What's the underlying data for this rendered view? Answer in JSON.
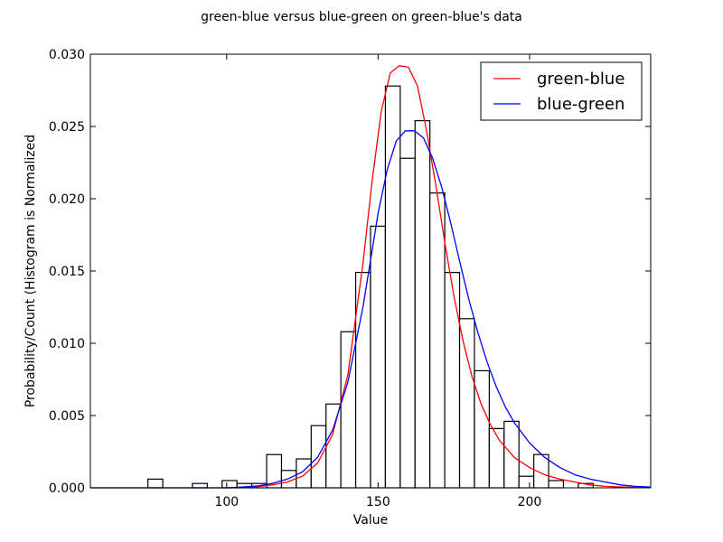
{
  "chart_data": {
    "type": "bar",
    "title": "green-blue versus blue-green on green-blue's data",
    "xlabel": "Value",
    "ylabel": "Probability/Count (Histogram is Normalized",
    "xlim": [
      55,
      240
    ],
    "ylim": [
      0,
      0.03
    ],
    "x_ticks": [
      100,
      150,
      200
    ],
    "x_tick_labels": [
      "100",
      "150",
      "200"
    ],
    "y_ticks": [
      0,
      0.005,
      0.01,
      0.015,
      0.02,
      0.025,
      0.03
    ],
    "y_tick_labels": [
      "0.000",
      "0.005",
      "0.010",
      "0.015",
      "0.020",
      "0.025",
      "0.030"
    ],
    "legend_placement": "top-right",
    "grid": false,
    "histogram": {
      "bin_edges": [
        74.0,
        78.9,
        83.8,
        88.7,
        93.6,
        98.5,
        103.4,
        108.3,
        113.2,
        118.1,
        123.0,
        127.9,
        132.8,
        137.7,
        142.6,
        147.5,
        152.4,
        157.3,
        162.2,
        167.1,
        172.0,
        176.9,
        181.8,
        186.7,
        191.6,
        196.5,
        201.4,
        206.3,
        211.2,
        216.1,
        221.0
      ],
      "values": [
        0.0006,
        0,
        0,
        0.0003,
        0,
        0.0005,
        0.0003,
        0.0003,
        0.0023,
        0.0012,
        0.002,
        0.0043,
        0.0058,
        0.0108,
        0.0149,
        0.0181,
        0.0278,
        0.0228,
        0.0254,
        0.0204,
        0.0149,
        0.0117,
        0.0081,
        0.0041,
        0.0046,
        0.0008,
        0.0023,
        0.0005,
        0,
        0.0003
      ],
      "edge_color": "#000000",
      "fill_color": "#ffffff"
    },
    "series": [
      {
        "name": "green-blue",
        "color": "#ff0000",
        "x": [
          55,
          60,
          65,
          70,
          75,
          80,
          85,
          90,
          95,
          100,
          105,
          110,
          115,
          120,
          125,
          130,
          135,
          140,
          145,
          148,
          151,
          154,
          157,
          160,
          163,
          166,
          169,
          172,
          175,
          178,
          181,
          184,
          187,
          190,
          195,
          200,
          205,
          210,
          215,
          220,
          225,
          230,
          235,
          240
        ],
        "values": [
          0,
          0,
          0,
          0,
          0,
          0,
          0,
          0,
          0,
          0,
          2e-05,
          7e-05,
          0.0002,
          0.0004,
          0.0008,
          0.0017,
          0.0037,
          0.0078,
          0.0155,
          0.0212,
          0.026,
          0.0287,
          0.0292,
          0.0291,
          0.0278,
          0.0247,
          0.021,
          0.017,
          0.0133,
          0.0102,
          0.0077,
          0.0058,
          0.0044,
          0.0033,
          0.0021,
          0.0014,
          0.0009,
          0.0006,
          0.0004,
          0.0002,
          0.0001,
          6e-05,
          3e-05,
          1e-05
        ]
      },
      {
        "name": "blue-green",
        "color": "#0000ff",
        "x": [
          55,
          60,
          65,
          70,
          75,
          80,
          85,
          90,
          95,
          100,
          105,
          110,
          115,
          120,
          125,
          130,
          135,
          140,
          145,
          150,
          153,
          156,
          159,
          162,
          165,
          168,
          171,
          174,
          177,
          180,
          183,
          186,
          189,
          192,
          195,
          200,
          205,
          210,
          215,
          220,
          225,
          230,
          235,
          240
        ],
        "values": [
          0,
          0,
          0,
          0,
          0,
          0,
          0,
          0,
          0,
          0,
          5e-05,
          0.00012,
          0.0003,
          0.0006,
          0.0011,
          0.0021,
          0.004,
          0.0073,
          0.0125,
          0.019,
          0.022,
          0.024,
          0.0247,
          0.0247,
          0.0242,
          0.0228,
          0.0208,
          0.0183,
          0.0156,
          0.013,
          0.0107,
          0.0087,
          0.007,
          0.0056,
          0.0045,
          0.0031,
          0.0021,
          0.0014,
          0.0009,
          0.0006,
          0.0004,
          0.0002,
          0.0001,
          5e-05
        ]
      }
    ]
  }
}
